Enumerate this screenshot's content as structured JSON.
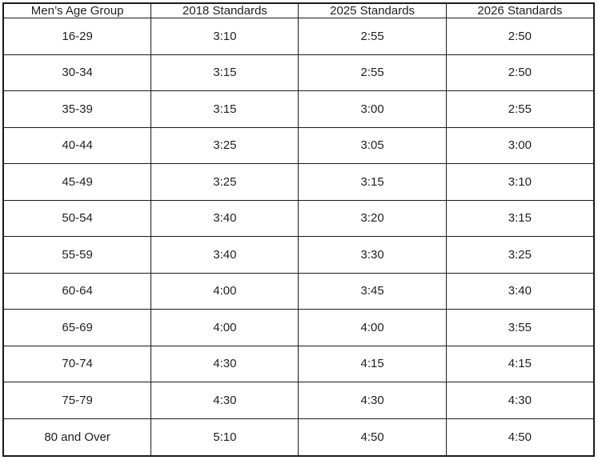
{
  "table": {
    "columns": [
      "Men’s Age Group",
      "2018 Standards",
      "2025 Standards",
      "2026 Standards"
    ],
    "rows": [
      [
        "16-29",
        "3:10",
        "2:55",
        "2:50"
      ],
      [
        "30-34",
        "3:15",
        "2:55",
        "2:50"
      ],
      [
        "35-39",
        "3:15",
        "3:00",
        "2:55"
      ],
      [
        "40-44",
        "3:25",
        "3:05",
        "3:00"
      ],
      [
        "45-49",
        "3:25",
        "3:15",
        "3:10"
      ],
      [
        "50-54",
        "3:40",
        "3:20",
        "3:15"
      ],
      [
        "55-59",
        "3:40",
        "3:30",
        "3:25"
      ],
      [
        "60-64",
        "4:00",
        "3:45",
        "3:40"
      ],
      [
        "65-69",
        "4:00",
        "4:00",
        "3:55"
      ],
      [
        "70-74",
        "4:30",
        "4:15",
        "4:15"
      ],
      [
        "75-79",
        "4:30",
        "4:30",
        "4:30"
      ],
      [
        "80 and Over",
        "5:10",
        "4:50",
        "4:50"
      ]
    ]
  }
}
